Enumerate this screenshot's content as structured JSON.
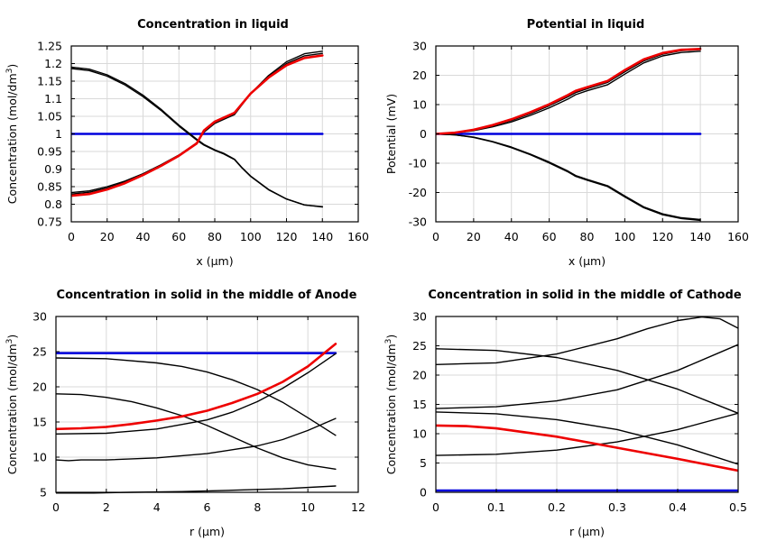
{
  "chart_data": [
    {
      "type": "line",
      "title": "Concentration in liquid",
      "xlabel": "x (µm)",
      "ylabel": "Concentration (mol/dm",
      "ylabel_sup": "3",
      "ylabel_tail": ")",
      "xlim": [
        0,
        160
      ],
      "ylim": [
        0.75,
        1.25
      ],
      "xticks": [
        "0",
        "20",
        "40",
        "60",
        "80",
        "100",
        "120",
        "140",
        "160"
      ],
      "yticks": [
        "0.75",
        "0.8",
        "0.85",
        "0.9",
        "0.95",
        "1",
        "1.05",
        "1.1",
        "1.15",
        "1.2",
        "1.25"
      ],
      "grid": true,
      "series": [
        {
          "color": "#0000dd",
          "width": 2.5,
          "x": [
            0,
            140
          ],
          "y": [
            1.0,
            1.0
          ]
        },
        {
          "color": "#000000",
          "width": 1.4,
          "x": [
            0,
            10,
            20,
            30,
            40,
            50,
            60,
            70,
            74,
            80,
            85,
            91,
            95,
            100,
            110,
            120,
            130,
            140
          ],
          "y": [
            1.19,
            1.184,
            1.168,
            1.143,
            1.11,
            1.07,
            1.025,
            0.985,
            0.97,
            0.955,
            0.945,
            0.928,
            0.905,
            0.88,
            0.842,
            0.815,
            0.798,
            0.792
          ]
        },
        {
          "color": "#000000",
          "width": 1.4,
          "x": [
            0,
            10,
            20,
            30,
            40,
            50,
            60,
            70,
            74,
            80,
            85,
            91,
            95,
            100,
            110,
            120,
            130,
            140
          ],
          "y": [
            1.186,
            1.18,
            1.164,
            1.139,
            1.106,
            1.067,
            1.022,
            0.982,
            0.968,
            0.953,
            0.943,
            0.927,
            0.904,
            0.879,
            0.841,
            0.815,
            0.798,
            0.793
          ]
        },
        {
          "color": "#000000",
          "width": 1.4,
          "x": [
            0,
            10,
            20,
            30,
            40,
            50,
            60,
            70,
            74,
            80,
            91,
            100,
            110,
            120,
            130,
            140
          ],
          "y": [
            0.833,
            0.838,
            0.85,
            0.866,
            0.887,
            0.912,
            0.94,
            0.975,
            1.005,
            1.03,
            1.055,
            1.115,
            1.166,
            1.205,
            1.228,
            1.235
          ]
        },
        {
          "color": "#000000",
          "width": 1.4,
          "x": [
            0,
            10,
            20,
            30,
            40,
            50,
            60,
            70,
            74,
            80,
            91,
            100,
            110,
            120,
            130,
            140
          ],
          "y": [
            0.829,
            0.834,
            0.846,
            0.863,
            0.885,
            0.91,
            0.939,
            0.974,
            1.007,
            1.032,
            1.058,
            1.114,
            1.162,
            1.2,
            1.222,
            1.229
          ]
        },
        {
          "color": "#ee0000",
          "width": 2.6,
          "x": [
            0,
            10,
            20,
            30,
            40,
            50,
            60,
            70,
            74,
            80,
            91,
            100,
            110,
            120,
            130,
            140
          ],
          "y": [
            0.824,
            0.829,
            0.842,
            0.86,
            0.883,
            0.909,
            0.938,
            0.973,
            1.01,
            1.035,
            1.06,
            1.115,
            1.16,
            1.195,
            1.216,
            1.223
          ]
        }
      ]
    },
    {
      "type": "line",
      "title": "Potential in liquid",
      "xlabel": "x (µm)",
      "ylabel": "Potential (mV)",
      "ylabel_sup": "",
      "ylabel_tail": "",
      "xlim": [
        0,
        160
      ],
      "ylim": [
        -30,
        30
      ],
      "xticks": [
        "0",
        "20",
        "40",
        "60",
        "80",
        "100",
        "120",
        "140",
        "160"
      ],
      "yticks": [
        "-30",
        "-20",
        "-10",
        "0",
        "10",
        "20",
        "30"
      ],
      "grid": true,
      "series": [
        {
          "color": "#0000dd",
          "width": 2.5,
          "x": [
            0,
            140
          ],
          "y": [
            0,
            0
          ]
        },
        {
          "color": "#000000",
          "width": 1.4,
          "x": [
            0,
            10,
            20,
            30,
            40,
            50,
            60,
            70,
            74,
            80,
            91,
            100,
            110,
            120,
            130,
            140
          ],
          "y": [
            0,
            -0.3,
            -1.2,
            -2.7,
            -4.7,
            -7.1,
            -9.9,
            -13.0,
            -14.5,
            -15.8,
            -18.0,
            -21.5,
            -25.2,
            -27.6,
            -28.9,
            -29.5
          ]
        },
        {
          "color": "#000000",
          "width": 1.4,
          "x": [
            0,
            10,
            20,
            30,
            40,
            50,
            60,
            70,
            74,
            80,
            91,
            100,
            110,
            120,
            130,
            140
          ],
          "y": [
            0,
            -0.3,
            -1.1,
            -2.6,
            -4.5,
            -6.9,
            -9.6,
            -12.7,
            -14.2,
            -15.5,
            -17.7,
            -21.2,
            -24.9,
            -27.3,
            -28.6,
            -29.2
          ]
        },
        {
          "color": "#000000",
          "width": 1.4,
          "x": [
            0,
            10,
            20,
            30,
            40,
            50,
            60,
            70,
            74,
            80,
            91,
            100,
            110,
            120,
            130,
            140
          ],
          "y": [
            0,
            0.3,
            1.1,
            2.4,
            4.1,
            6.3,
            8.9,
            11.9,
            13.4,
            14.7,
            16.8,
            20.4,
            24.2,
            26.6,
            27.8,
            28.2
          ]
        },
        {
          "color": "#000000",
          "width": 1.4,
          "x": [
            0,
            10,
            20,
            30,
            40,
            50,
            60,
            70,
            74,
            80,
            91,
            100,
            110,
            120,
            130,
            140
          ],
          "y": [
            0,
            0.3,
            1.3,
            2.8,
            4.6,
            6.9,
            9.6,
            12.7,
            14.1,
            15.4,
            17.6,
            21.2,
            24.9,
            27.2,
            28.4,
            28.8
          ]
        },
        {
          "color": "#ee0000",
          "width": 2.6,
          "x": [
            0,
            10,
            20,
            30,
            40,
            50,
            60,
            70,
            74,
            80,
            91,
            100,
            110,
            120,
            130,
            140
          ],
          "y": [
            0,
            0.4,
            1.4,
            3.0,
            5.0,
            7.4,
            10.1,
            13.3,
            14.7,
            15.9,
            18.1,
            21.8,
            25.4,
            27.6,
            28.7,
            29.0
          ]
        }
      ]
    },
    {
      "type": "line",
      "title": "Concentration in solid in the middle of Anode",
      "xlabel": "r (µm)",
      "ylabel": "Concentration (mol/dm",
      "ylabel_sup": "3",
      "ylabel_tail": ")",
      "xlim": [
        0,
        12
      ],
      "ylim": [
        5,
        30
      ],
      "xticks": [
        "0",
        "2",
        "4",
        "6",
        "8",
        "10",
        "12"
      ],
      "yticks": [
        "5",
        "10",
        "15",
        "20",
        "25",
        "30"
      ],
      "grid": true,
      "series": [
        {
          "color": "#0000dd",
          "width": 2.5,
          "x": [
            0,
            11.1
          ],
          "y": [
            24.8,
            24.8
          ]
        },
        {
          "color": "#000000",
          "width": 1.4,
          "x": [
            0,
            2,
            4,
            5,
            6,
            7,
            8,
            9,
            10,
            11.1
          ],
          "y": [
            24.1,
            24.0,
            23.4,
            22.9,
            22.1,
            21.0,
            19.6,
            17.8,
            15.6,
            13.1
          ]
        },
        {
          "color": "#000000",
          "width": 1.4,
          "x": [
            0,
            1,
            2,
            3,
            4,
            5,
            6,
            7,
            8,
            9,
            10,
            11.1
          ],
          "y": [
            19.0,
            18.9,
            18.5,
            17.9,
            17.0,
            15.9,
            14.5,
            12.9,
            11.3,
            9.9,
            8.9,
            8.3
          ]
        },
        {
          "color": "#000000",
          "width": 1.4,
          "x": [
            0,
            2,
            4,
            6,
            7,
            8,
            9,
            10,
            11.1
          ],
          "y": [
            13.3,
            13.4,
            14.0,
            15.3,
            16.4,
            17.9,
            19.8,
            22.0,
            24.7
          ]
        },
        {
          "color": "#000000",
          "width": 1.4,
          "x": [
            0,
            0.5,
            1,
            2,
            4,
            6,
            8,
            9,
            10,
            11.1
          ],
          "y": [
            9.6,
            9.5,
            9.6,
            9.6,
            9.9,
            10.5,
            11.6,
            12.5,
            13.8,
            15.5
          ]
        },
        {
          "color": "#000000",
          "width": 1.4,
          "x": [
            0,
            1.5,
            3,
            5,
            7,
            9,
            11.1
          ],
          "y": [
            4.9,
            4.9,
            5.0,
            5.1,
            5.3,
            5.5,
            5.9
          ]
        },
        {
          "color": "#ee0000",
          "width": 2.6,
          "x": [
            0,
            1,
            2,
            3,
            4,
            5,
            6,
            7,
            8,
            9,
            10,
            11.1
          ],
          "y": [
            14.0,
            14.1,
            14.3,
            14.7,
            15.2,
            15.8,
            16.6,
            17.7,
            19.0,
            20.7,
            22.9,
            26.1
          ]
        }
      ]
    },
    {
      "type": "line",
      "title": "Concentration in solid in the middle of Cathode",
      "xlabel": "r (µm)",
      "ylabel": "Concentration (mol/dm",
      "ylabel_sup": "3",
      "ylabel_tail": ")",
      "xlim": [
        0,
        0.5
      ],
      "ylim": [
        0,
        30
      ],
      "xticks": [
        "0",
        "0.1",
        "0.2",
        "0.3",
        "0.4",
        "0.5"
      ],
      "yticks": [
        "0",
        "5",
        "10",
        "15",
        "20",
        "25",
        "30"
      ],
      "grid": true,
      "series": [
        {
          "color": "#0000dd",
          "width": 2.5,
          "x": [
            0,
            0.5
          ],
          "y": [
            0.3,
            0.3
          ]
        },
        {
          "color": "#000000",
          "width": 1.4,
          "x": [
            0,
            0.1,
            0.2,
            0.3,
            0.35,
            0.4,
            0.44,
            0.47,
            0.5
          ],
          "y": [
            21.8,
            22.1,
            23.6,
            26.2,
            27.9,
            29.3,
            29.9,
            29.6,
            28.0
          ]
        },
        {
          "color": "#000000",
          "width": 1.4,
          "x": [
            0,
            0.1,
            0.2,
            0.3,
            0.4,
            0.5
          ],
          "y": [
            24.5,
            24.2,
            23.0,
            20.8,
            17.6,
            13.5
          ]
        },
        {
          "color": "#000000",
          "width": 1.4,
          "x": [
            0,
            0.1,
            0.2,
            0.3,
            0.4,
            0.5
          ],
          "y": [
            14.3,
            14.6,
            15.6,
            17.5,
            20.8,
            25.2
          ]
        },
        {
          "color": "#000000",
          "width": 1.4,
          "x": [
            0,
            0.1,
            0.2,
            0.3,
            0.4,
            0.5
          ],
          "y": [
            13.7,
            13.4,
            12.4,
            10.7,
            8.1,
            4.8
          ]
        },
        {
          "color": "#000000",
          "width": 1.4,
          "x": [
            0,
            0.1,
            0.2,
            0.3,
            0.4,
            0.5
          ],
          "y": [
            6.3,
            6.5,
            7.2,
            8.6,
            10.7,
            13.5
          ]
        },
        {
          "color": "#ee0000",
          "width": 2.6,
          "x": [
            0,
            0.05,
            0.1,
            0.2,
            0.3,
            0.4,
            0.5
          ],
          "y": [
            11.4,
            11.3,
            10.9,
            9.5,
            7.6,
            5.7,
            3.7
          ]
        }
      ]
    }
  ]
}
